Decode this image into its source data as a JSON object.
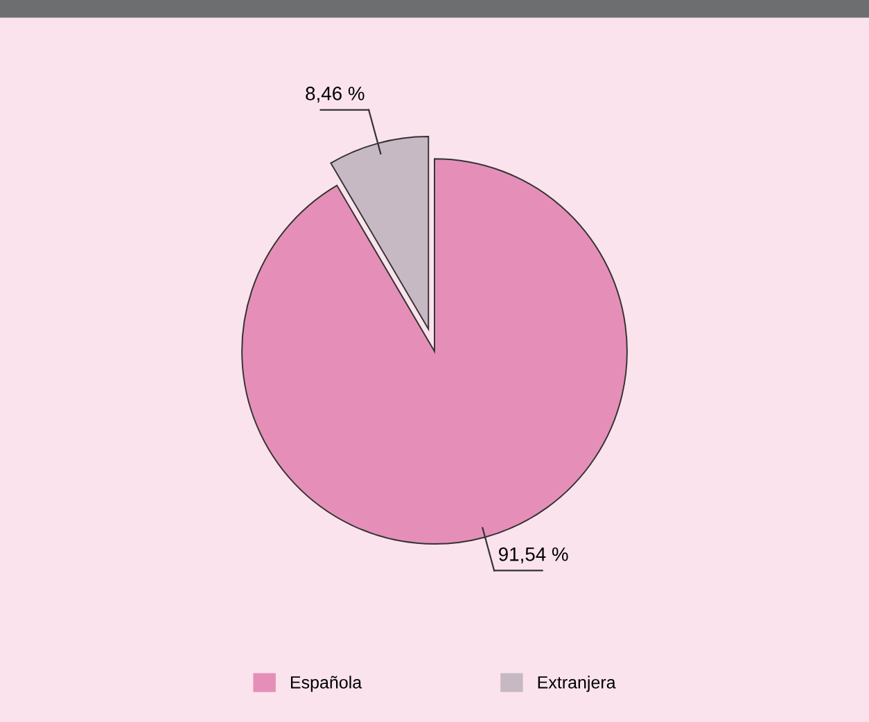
{
  "chart_data": {
    "type": "pie",
    "categories": [
      "Española",
      "Extranjera"
    ],
    "values": [
      91.54,
      8.46
    ],
    "colors": [
      "#e58fb8",
      "#c7b9c3"
    ],
    "value_labels": [
      "91,54 %",
      "8,46 %"
    ],
    "legend": "bottom"
  }
}
